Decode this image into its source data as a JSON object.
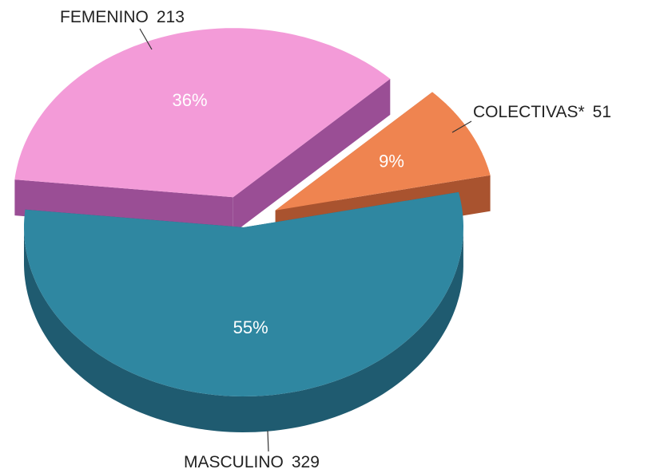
{
  "chart_data": {
    "type": "pie",
    "categories": [
      "FEMENINO",
      "COLECTIVAS*",
      "MASCULINO"
    ],
    "values": [
      36,
      9,
      55
    ],
    "value_labels": [
      "36%",
      "9%",
      "55%"
    ],
    "counts": [
      213,
      51,
      329
    ],
    "colors": [
      "#f39bd8",
      "#ef8450",
      "#2f87a1"
    ],
    "side_colors": [
      "#9a4e95",
      "#a9532f",
      "#1f5b70"
    ]
  }
}
